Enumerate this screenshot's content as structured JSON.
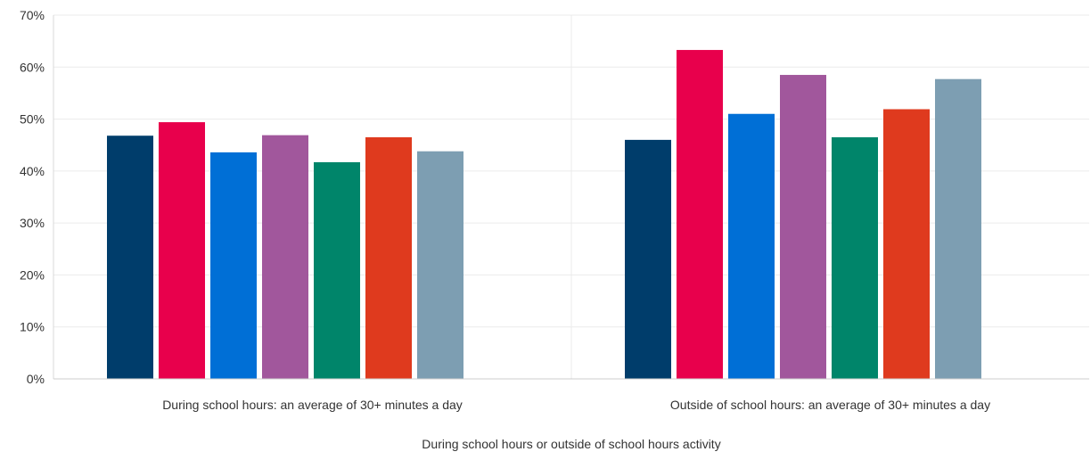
{
  "chart_data": {
    "type": "bar",
    "title": "",
    "xlabel": "During school hours or outside of school hours activity",
    "ylabel": "",
    "ylim": [
      0,
      70
    ],
    "y_ticks": [
      "0%",
      "10%",
      "20%",
      "30%",
      "40%",
      "50%",
      "60%",
      "70%"
    ],
    "y_tick_values": [
      0,
      10,
      20,
      30,
      40,
      50,
      60,
      70
    ],
    "categories": [
      "During school hours: an average of 30+ minutes a day",
      "Outside of school hours: an average of 30+ minutes a day"
    ],
    "series": [
      {
        "color": "#003d6b",
        "values": [
          46.8,
          46.0
        ]
      },
      {
        "color": "#e8004c",
        "values": [
          49.4,
          63.3
        ]
      },
      {
        "color": "#006fd6",
        "values": [
          43.6,
          51.0
        ]
      },
      {
        "color": "#a1579c",
        "values": [
          46.9,
          58.5
        ]
      },
      {
        "color": "#00856a",
        "values": [
          41.7,
          46.5
        ]
      },
      {
        "color": "#df3a1e",
        "values": [
          46.5,
          51.9
        ]
      },
      {
        "color": "#7d9eb2",
        "values": [
          43.8,
          57.7
        ]
      }
    ],
    "grid": true,
    "legend": "none"
  }
}
